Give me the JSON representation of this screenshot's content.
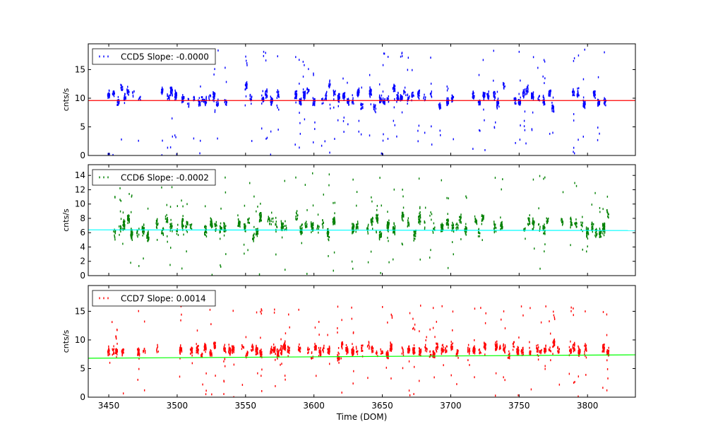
{
  "chart_data": [
    {
      "type": "scatter",
      "ylabel": "cnts/s",
      "xlim": [
        3435,
        3835
      ],
      "ylim": [
        0,
        19.5
      ],
      "yticks": [
        0,
        5,
        10,
        15
      ],
      "xtick_labels_shown": false,
      "grid": false,
      "legend_position": "top-left",
      "series": [
        {
          "name": "CCD5 Slope: -0.0000",
          "color": "#0000ff",
          "mean": 10.2,
          "spread": 2.0,
          "outlier_max": 18.5
        }
      ],
      "fit_line": {
        "color": "#ff0000",
        "x": [
          3435,
          3835
        ],
        "y": [
          9.6,
          9.6
        ]
      }
    },
    {
      "type": "scatter",
      "ylabel": "cnts/s",
      "xlim": [
        3435,
        3835
      ],
      "ylim": [
        0,
        15.5
      ],
      "yticks": [
        0,
        2,
        4,
        6,
        8,
        10,
        12,
        14
      ],
      "xtick_labels_shown": false,
      "grid": false,
      "legend_position": "top-left",
      "series": [
        {
          "name": "CCD6 Slope: -0.0002",
          "color": "#008000",
          "mean": 7.0,
          "spread": 1.8,
          "outlier_max": 14.5
        }
      ],
      "fit_line": {
        "color": "#00ffff",
        "x": [
          3435,
          3835
        ],
        "y": [
          6.4,
          6.3
        ]
      }
    },
    {
      "type": "scatter",
      "ylabel": "cnts/s",
      "xlabel": "Time (DOM)",
      "xlim": [
        3435,
        3835
      ],
      "ylim": [
        0,
        19.5
      ],
      "yticks": [
        0,
        5,
        10,
        15
      ],
      "xticks": [
        3450,
        3500,
        3550,
        3600,
        3650,
        3700,
        3750,
        3800
      ],
      "xtick_labels_shown": true,
      "grid": false,
      "legend_position": "top-left",
      "series": [
        {
          "name": "CCD7 Slope: 0.0014",
          "color": "#ff0000",
          "mean": 8.3,
          "spread": 1.2,
          "outlier_max": 16.0
        }
      ],
      "fit_line": {
        "color": "#00ff00",
        "x": [
          3435,
          3835
        ],
        "y": [
          6.8,
          7.4
        ]
      }
    }
  ]
}
